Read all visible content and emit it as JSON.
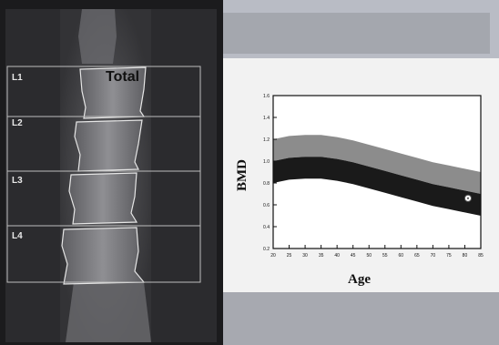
{
  "scan": {
    "vertebra_labels": [
      "L1",
      "L2",
      "L3",
      "L4"
    ]
  },
  "chart_data": {
    "type": "area",
    "title": "Total",
    "xlabel": "Age",
    "ylabel": "BMD",
    "xlim": [
      20,
      85
    ],
    "ylim": [
      0.2,
      1.6
    ],
    "x_ticks": [
      "20",
      "25",
      "30",
      "35",
      "40",
      "45",
      "50",
      "55",
      "60",
      "65",
      "70",
      "75",
      "80",
      "85"
    ],
    "y_ticks": [
      "0.2",
      "0.4",
      "0.6",
      "0.8",
      "1.0",
      "1.2",
      "1.4",
      "1.6"
    ],
    "x": [
      20,
      25,
      30,
      35,
      40,
      45,
      50,
      55,
      60,
      65,
      70,
      75,
      80,
      85
    ],
    "series": [
      {
        "values_upper": [
          1.2,
          1.23,
          1.24,
          1.24,
          1.22,
          1.19,
          1.15,
          1.11,
          1.07,
          1.03,
          0.99,
          0.96,
          0.93,
          0.9
        ],
        "values_lower": [
          1.0,
          1.03,
          1.04,
          1.04,
          1.02,
          0.99,
          0.95,
          0.91,
          0.87,
          0.83,
          0.79,
          0.76,
          0.73,
          0.7
        ],
        "color": "#8c8c8c"
      },
      {
        "values_upper": [
          1.0,
          1.03,
          1.04,
          1.04,
          1.02,
          0.99,
          0.95,
          0.91,
          0.87,
          0.83,
          0.79,
          0.76,
          0.73,
          0.7
        ],
        "values_lower": [
          0.8,
          0.83,
          0.84,
          0.84,
          0.82,
          0.79,
          0.75,
          0.71,
          0.67,
          0.63,
          0.59,
          0.56,
          0.53,
          0.5
        ],
        "color": "#1a1a1a"
      }
    ],
    "points": [
      {
        "x": 81,
        "y": 0.66
      }
    ],
    "grid": false
  }
}
